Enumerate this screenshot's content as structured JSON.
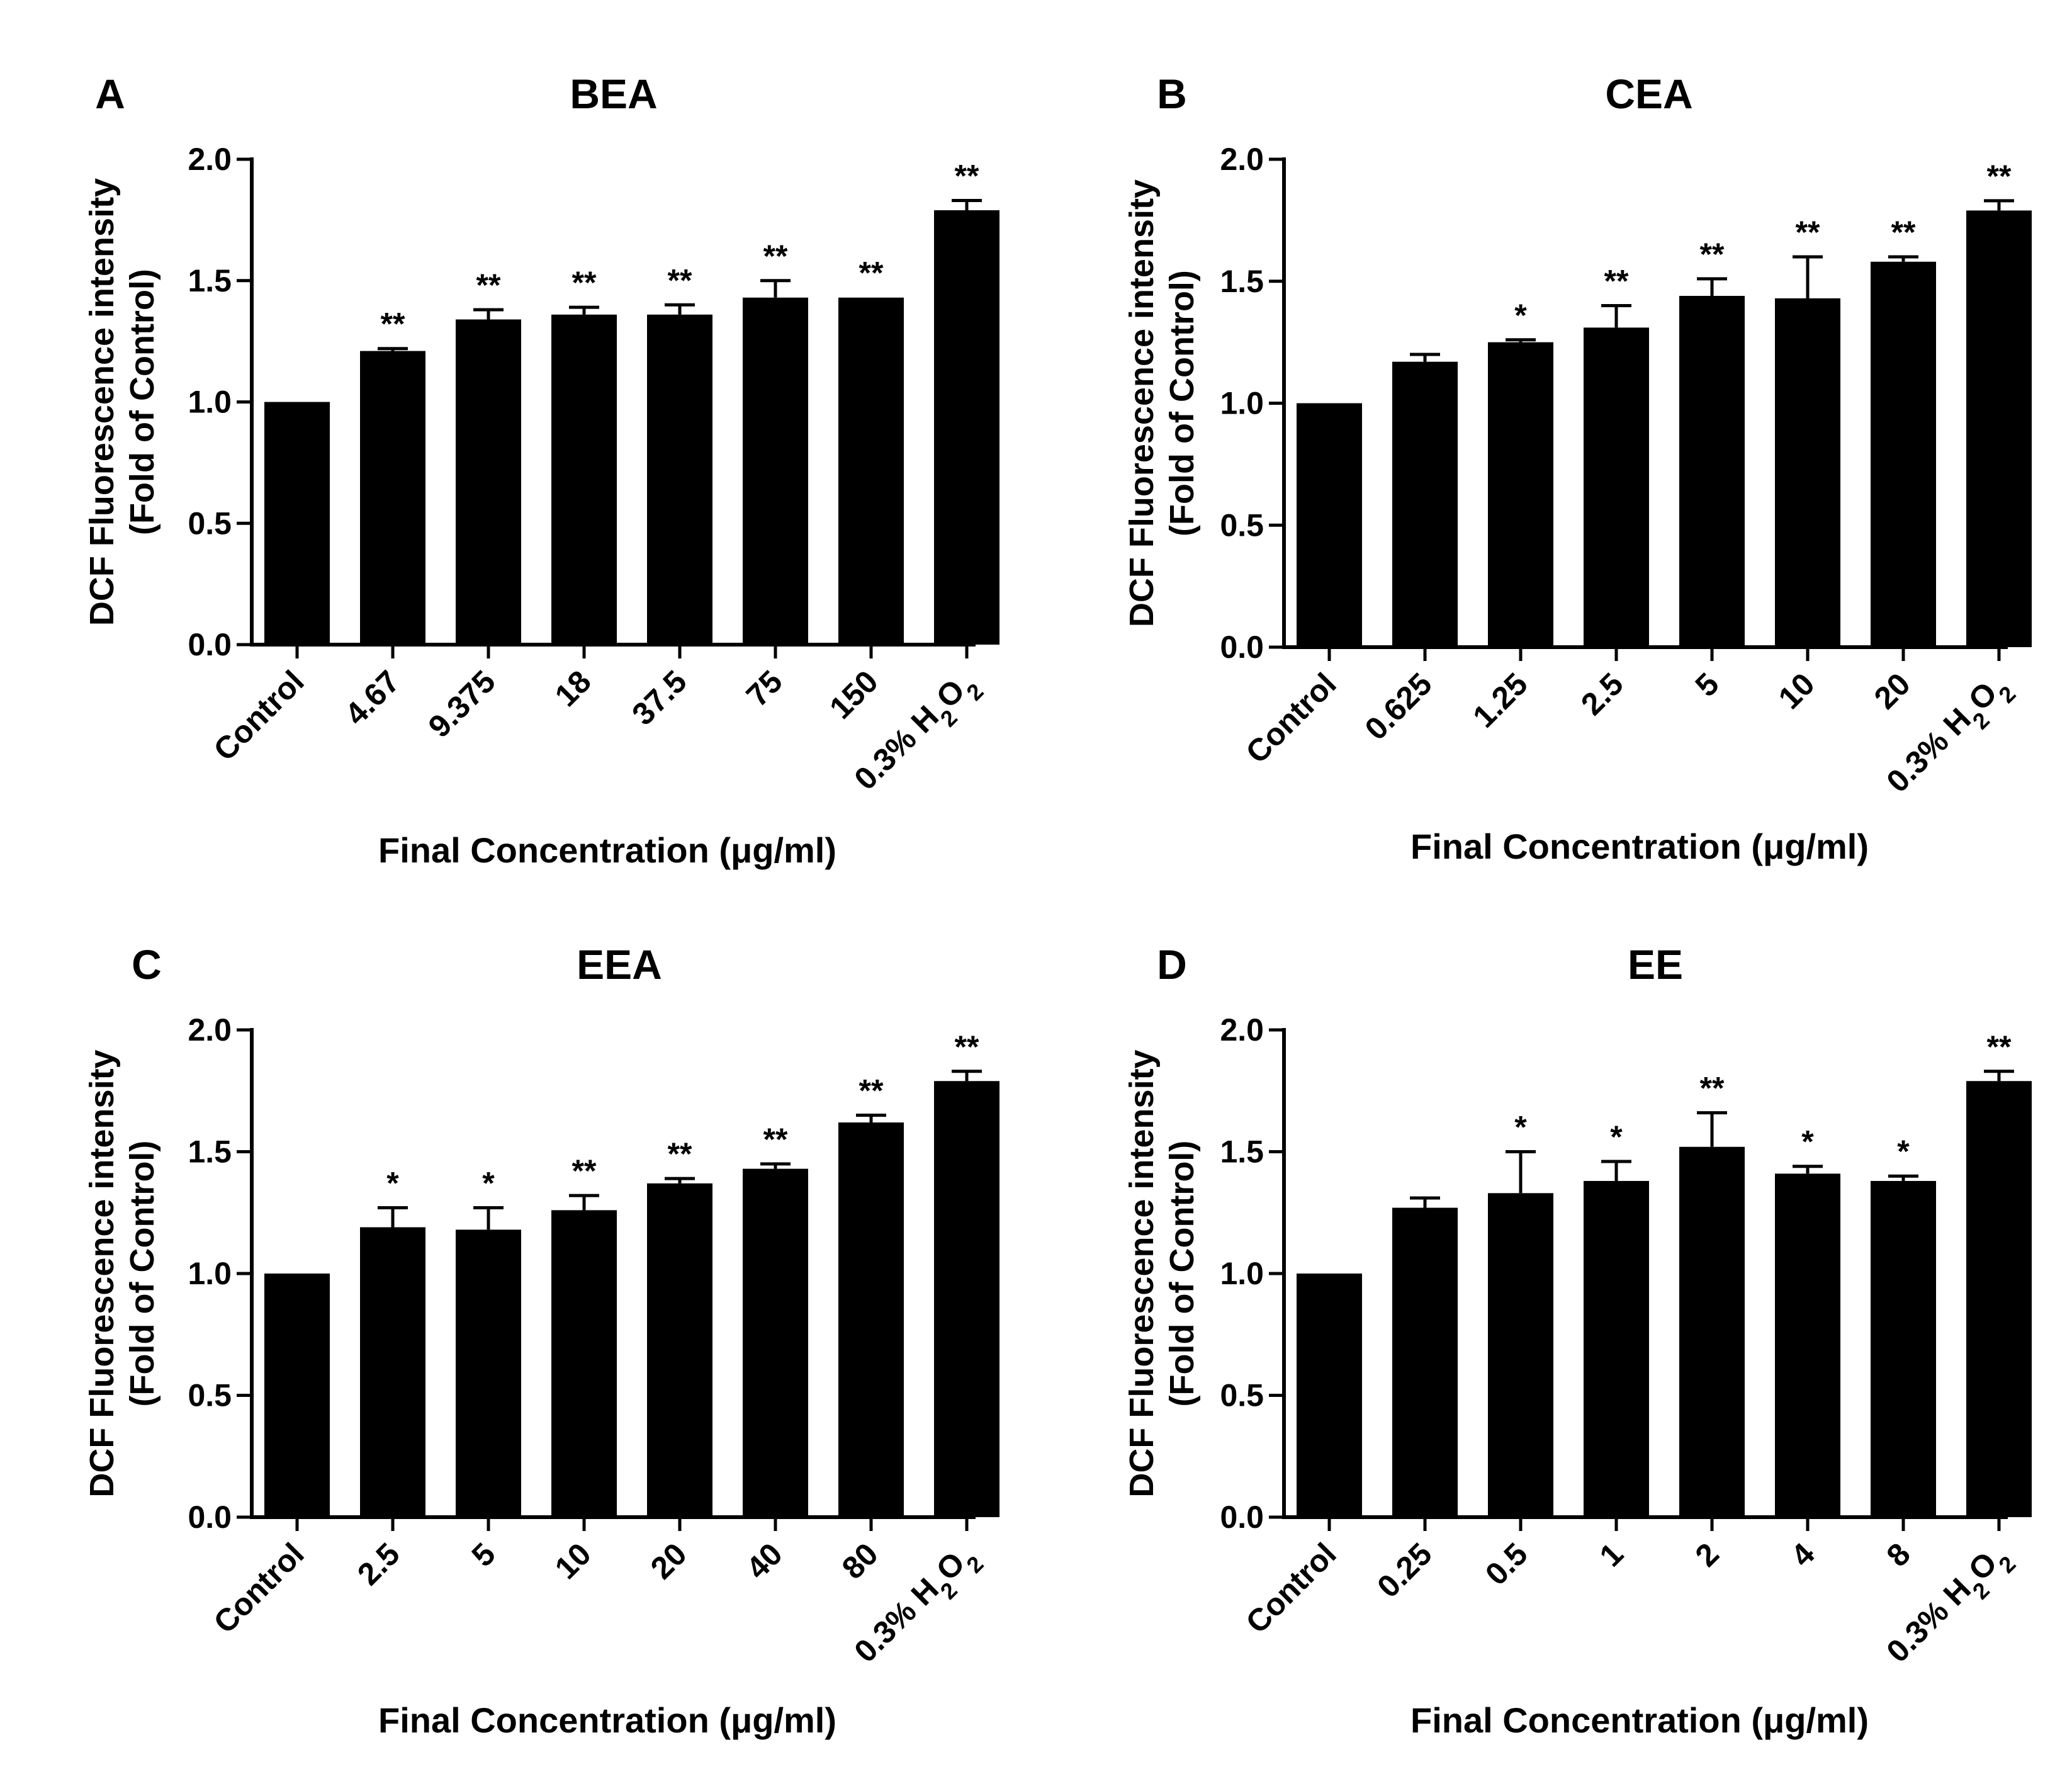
{
  "chart_data": [
    {
      "type": "bar",
      "panel": "A",
      "title": "BEA",
      "xlabel": "Final Concentration (μg/ml)",
      "ylabel": [
        "DCF Fluorescence intensity",
        "(Fold of Control)"
      ],
      "ylim": [
        0,
        2.0
      ],
      "yticks": [
        "0.0",
        "0.5",
        "1.0",
        "1.5",
        "2.0"
      ],
      "categories": [
        "Control",
        "4.67",
        "9.375",
        "18",
        "37.5",
        "75",
        "150",
        "0.3% H2O2"
      ],
      "values": [
        1.0,
        1.21,
        1.34,
        1.36,
        1.36,
        1.43,
        1.43,
        1.79
      ],
      "errors": [
        0.0,
        0.01,
        0.04,
        0.03,
        0.04,
        0.07,
        0.0,
        0.04
      ],
      "significance": [
        "",
        "**",
        "**",
        "**",
        "**",
        "**",
        "**",
        "**"
      ]
    },
    {
      "type": "bar",
      "panel": "B",
      "title": "CEA",
      "xlabel": "Final Concentration (μg/ml)",
      "ylabel": [
        "DCF Fluorescence intensity",
        "(Fold of Control)"
      ],
      "ylim": [
        0,
        2.0
      ],
      "yticks": [
        "0.0",
        "0.5",
        "1.0",
        "1.5",
        "2.0"
      ],
      "categories": [
        "Control",
        "0.625",
        "1.25",
        "2.5",
        "5",
        "10",
        "20",
        "0.3% H2O2"
      ],
      "values": [
        1.0,
        1.17,
        1.25,
        1.31,
        1.44,
        1.43,
        1.58,
        1.79
      ],
      "errors": [
        0.0,
        0.03,
        0.01,
        0.09,
        0.07,
        0.17,
        0.02,
        0.04
      ],
      "significance": [
        "",
        "",
        "*",
        "**",
        "**",
        "**",
        "**",
        "**"
      ]
    },
    {
      "type": "bar",
      "panel": "C",
      "title": "EEA",
      "xlabel": "Final Concentration (μg/ml)",
      "ylabel": [
        "DCF Fluorescence intensity",
        "(Fold of Control)"
      ],
      "ylim": [
        0,
        2.0
      ],
      "yticks": [
        "0.0",
        "0.5",
        "1.0",
        "1.5",
        "2.0"
      ],
      "categories": [
        "Control",
        "2.5",
        "5",
        "10",
        "20",
        "40",
        "80",
        "0.3% H2O2"
      ],
      "values": [
        1.0,
        1.19,
        1.18,
        1.26,
        1.37,
        1.43,
        1.62,
        1.79
      ],
      "errors": [
        0.0,
        0.08,
        0.09,
        0.06,
        0.02,
        0.02,
        0.03,
        0.04
      ],
      "significance": [
        "",
        "*",
        "*",
        "**",
        "**",
        "**",
        "**",
        "**"
      ]
    },
    {
      "type": "bar",
      "panel": "D",
      "title": "EE",
      "xlabel": "Final Concentration (μg/ml)",
      "ylabel": [
        "DCF Fluorescence intensity",
        "(Fold of Control)"
      ],
      "ylim": [
        0,
        2.0
      ],
      "yticks": [
        "0.0",
        "0.5",
        "1.0",
        "1.5",
        "2.0"
      ],
      "categories": [
        "Control",
        "0.25",
        "0.5",
        "1",
        "2",
        "4",
        "8",
        "0.3% H2O2"
      ],
      "values": [
        1.0,
        1.27,
        1.33,
        1.38,
        1.52,
        1.41,
        1.38,
        1.79
      ],
      "errors": [
        0.0,
        0.04,
        0.17,
        0.08,
        0.14,
        0.03,
        0.02,
        0.04
      ],
      "significance": [
        "",
        "",
        "*",
        "*",
        "**",
        "*",
        "*",
        "**"
      ]
    }
  ]
}
